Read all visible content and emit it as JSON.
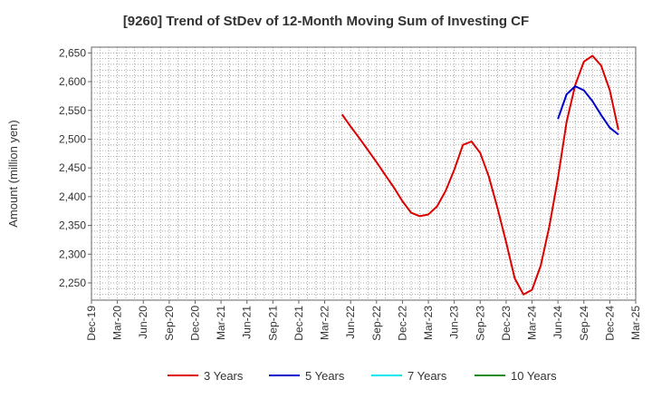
{
  "chart_data": {
    "type": "line",
    "title": "[9260]  Trend of StDev of 12-Month Moving Sum of Investing CF",
    "xlabel": "",
    "ylabel": "Amount (million yen)",
    "ylim": [
      2220,
      2660
    ],
    "yticks": [
      2250,
      2300,
      2350,
      2400,
      2450,
      2500,
      2550,
      2600,
      2650
    ],
    "ytick_labels": [
      "2,250",
      "2,300",
      "2,350",
      "2,400",
      "2,450",
      "2,500",
      "2,550",
      "2,600",
      "2,650"
    ],
    "xlim": [
      "2019-12",
      "2025-03"
    ],
    "xtick_labels": [
      "Dec-19",
      "Mar-20",
      "Jun-20",
      "Sep-20",
      "Dec-20",
      "Mar-21",
      "Jun-21",
      "Sep-21",
      "Dec-21",
      "Mar-22",
      "Jun-22",
      "Sep-22",
      "Dec-22",
      "Mar-23",
      "Jun-23",
      "Sep-23",
      "Dec-23",
      "Mar-24",
      "Jun-24",
      "Sep-24",
      "Dec-24",
      "Mar-25"
    ],
    "grid": true,
    "legend_placement": "bottom",
    "series": [
      {
        "name": "3 Years",
        "color": "#dd0000",
        "points": [
          [
            "2022-05",
            2543
          ],
          [
            "2022-06",
            2522
          ],
          [
            "2022-07",
            2502
          ],
          [
            "2022-08",
            2481
          ],
          [
            "2022-09",
            2460
          ],
          [
            "2022-10",
            2438
          ],
          [
            "2022-11",
            2416
          ],
          [
            "2022-12",
            2392
          ],
          [
            "2023-01",
            2372
          ],
          [
            "2023-02",
            2366
          ],
          [
            "2023-03",
            2369
          ],
          [
            "2023-04",
            2383
          ],
          [
            "2023-05",
            2410
          ],
          [
            "2023-06",
            2447
          ],
          [
            "2023-07",
            2490
          ],
          [
            "2023-08",
            2496
          ],
          [
            "2023-09",
            2476
          ],
          [
            "2023-10",
            2435
          ],
          [
            "2023-11",
            2380
          ],
          [
            "2023-12",
            2321
          ],
          [
            "2024-01",
            2258
          ],
          [
            "2024-02",
            2230
          ],
          [
            "2024-03",
            2238
          ],
          [
            "2024-04",
            2280
          ],
          [
            "2024-05",
            2348
          ],
          [
            "2024-06",
            2432
          ],
          [
            "2024-07",
            2530
          ],
          [
            "2024-08",
            2594
          ],
          [
            "2024-09",
            2635
          ],
          [
            "2024-10",
            2645
          ],
          [
            "2024-11",
            2628
          ],
          [
            "2024-12",
            2585
          ],
          [
            "2025-01",
            2516
          ]
        ]
      },
      {
        "name": "5 Years",
        "color": "#0000cc",
        "points": [
          [
            "2024-06",
            2535
          ],
          [
            "2024-07",
            2578
          ],
          [
            "2024-08",
            2592
          ],
          [
            "2024-09",
            2585
          ],
          [
            "2024-10",
            2566
          ],
          [
            "2024-11",
            2542
          ],
          [
            "2024-12",
            2520
          ],
          [
            "2025-01",
            2508
          ]
        ]
      },
      {
        "name": "7 Years",
        "color": "#00e5ee",
        "points": []
      },
      {
        "name": "10 Years",
        "color": "#228b22",
        "points": []
      }
    ]
  }
}
